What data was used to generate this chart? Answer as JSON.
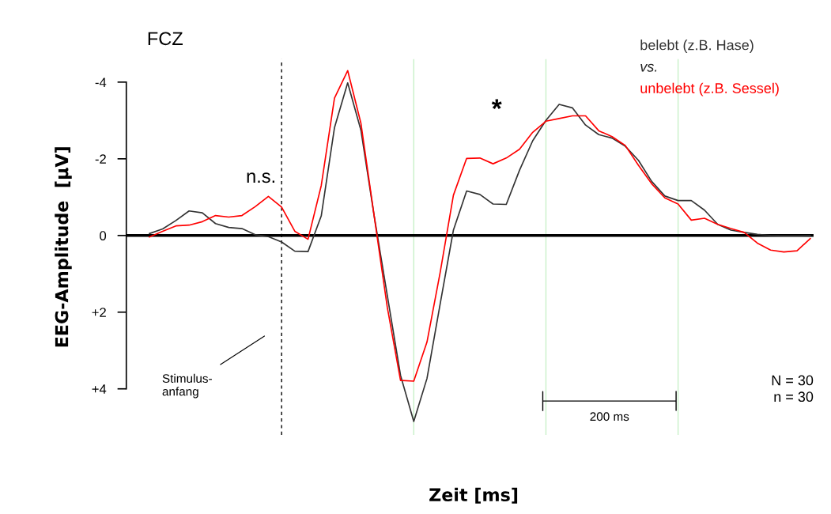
{
  "chart_data": {
    "type": "line",
    "title": "FCZ",
    "xlabel": "Zeit [ms]",
    "ylabel": "EEG-Amplitude  [µV]",
    "categories": [
      null,
      null,
      null,
      null,
      null,
      null,
      null,
      null,
      null,
      null,
      null,
      null,
      null,
      null,
      null,
      null,
      null,
      null,
      null,
      null,
      null,
      null,
      null,
      null,
      null,
      null,
      null,
      null,
      null,
      null,
      null,
      null,
      null,
      null,
      null,
      null,
      null,
      null,
      null,
      null,
      null,
      null,
      null,
      null,
      null,
      null,
      null,
      null,
      null,
      null,
      null
    ],
    "series": [
      {
        "name": "belebt (z.B. Hase)",
        "color": "#333333",
        "values": [
          -0.05,
          -0.17,
          -0.39,
          -0.64,
          -0.59,
          -0.31,
          -0.21,
          -0.18,
          -0.02,
          0.03,
          0.17,
          0.41,
          0.42,
          -0.51,
          -2.81,
          -3.98,
          -2.75,
          -0.52,
          1.57,
          3.65,
          4.85,
          3.73,
          1.78,
          -0.14,
          -1.16,
          -1.07,
          -0.82,
          -0.81,
          -1.7,
          -2.47,
          -3.0,
          -3.42,
          -3.33,
          -2.88,
          -2.63,
          -2.54,
          -2.33,
          -1.96,
          -1.41,
          -1.03,
          -0.91,
          -0.91,
          -0.66,
          -0.29,
          -0.14,
          -0.08,
          -0.03,
          0,
          0.01,
          0.01,
          0
        ]
      },
      {
        "name": "unbelebt (z.B. Sessel)",
        "color": "#ff0000",
        "values": [
          0.04,
          -0.11,
          -0.25,
          -0.27,
          -0.36,
          -0.52,
          -0.48,
          -0.52,
          -0.75,
          -1.02,
          -0.74,
          -0.11,
          0.1,
          -1.3,
          -3.58,
          -4.3,
          -2.93,
          -0.52,
          1.88,
          3.78,
          3.8,
          2.78,
          0.96,
          -1.05,
          -2.01,
          -2.02,
          -1.87,
          -2.02,
          -2.25,
          -2.69,
          -2.98,
          -3.05,
          -3.12,
          -3.12,
          -2.73,
          -2.58,
          -2.35,
          -1.83,
          -1.35,
          -0.98,
          -0.82,
          -0.4,
          -0.45,
          -0.29,
          -0.18,
          -0.08,
          0.2,
          0.38,
          0.43,
          0.4,
          0.08
        ]
      }
    ],
    "ylim": [
      5.2,
      -4.6
    ],
    "yticks": [
      {
        "value": -4,
        "label": "-4"
      },
      {
        "value": -2,
        "label": "-2"
      },
      0,
      {
        "value": 2,
        "label": "+2"
      },
      {
        "value": 4,
        "label": "+4"
      }
    ],
    "tick_labels": "y",
    "marker": "none",
    "line_style": "solid",
    "ref_lines": [
      {
        "axis": "y",
        "value": 0,
        "color": "#000000",
        "line_style": "solid"
      }
    ],
    "grid": "x",
    "annotations": [
      "vs.",
      "N = 30\nn = 30",
      "n.s.",
      "*",
      "200 ms",
      "Stimulus-\nanfang"
    ]
  }
}
